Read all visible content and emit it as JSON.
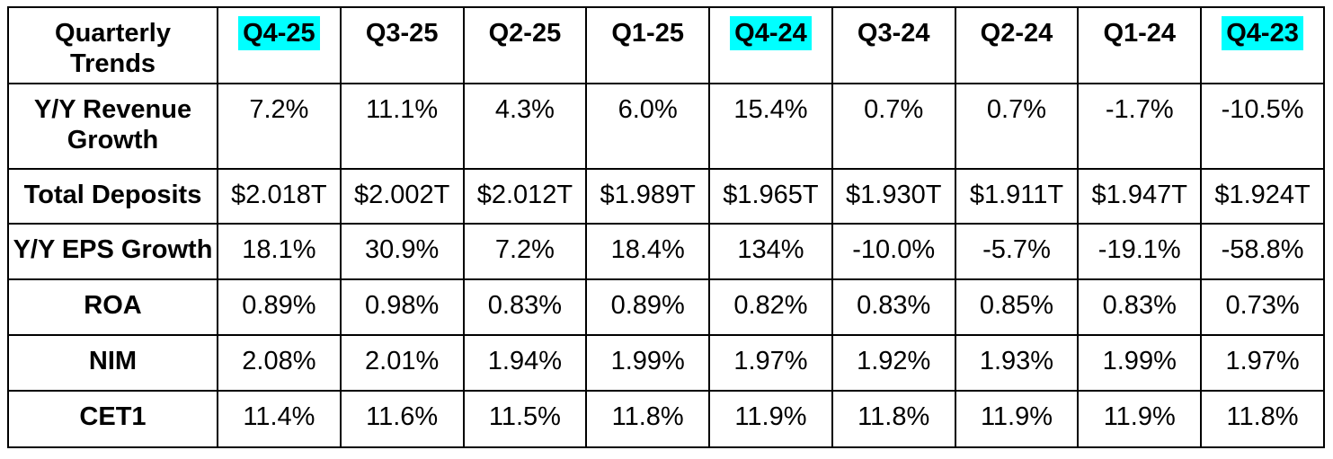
{
  "highlight_color": "#00ffff",
  "border_color": "#000000",
  "table": {
    "corner_label": "Quarterly Trends",
    "columns": [
      {
        "label": "Q4-25",
        "highlighted": true
      },
      {
        "label": "Q3-25",
        "highlighted": false
      },
      {
        "label": "Q2-25",
        "highlighted": false
      },
      {
        "label": "Q1-25",
        "highlighted": false
      },
      {
        "label": "Q4-24",
        "highlighted": true
      },
      {
        "label": "Q3-24",
        "highlighted": false
      },
      {
        "label": "Q2-24",
        "highlighted": false
      },
      {
        "label": "Q1-24",
        "highlighted": false
      },
      {
        "label": "Q4-23",
        "highlighted": true
      }
    ],
    "rows": [
      {
        "label": "Y/Y Revenue Growth",
        "values": [
          "7.2%",
          "11.1%",
          "4.3%",
          "6.0%",
          "15.4%",
          "0.7%",
          "0.7%",
          "-1.7%",
          "-10.5%"
        ]
      },
      {
        "label": "Total Deposits",
        "values": [
          "$2.018T",
          "$2.002T",
          "$2.012T",
          "$1.989T",
          "$1.965T",
          "$1.930T",
          "$1.911T",
          "$1.947T",
          "$1.924T"
        ]
      },
      {
        "label": "Y/Y EPS Growth",
        "values": [
          "18.1%",
          "30.9%",
          "7.2%",
          "18.4%",
          "134%",
          "-10.0%",
          "-5.7%",
          "-19.1%",
          "-58.8%"
        ]
      },
      {
        "label": "ROA",
        "values": [
          "0.89%",
          "0.98%",
          "0.83%",
          "0.89%",
          "0.82%",
          "0.83%",
          "0.85%",
          "0.83%",
          "0.73%"
        ]
      },
      {
        "label": "NIM",
        "values": [
          "2.08%",
          "2.01%",
          "1.94%",
          "1.99%",
          "1.97%",
          "1.92%",
          "1.93%",
          "1.99%",
          "1.97%"
        ]
      },
      {
        "label": "CET1",
        "values": [
          "11.4%",
          "11.6%",
          "11.5%",
          "11.8%",
          "11.9%",
          "11.8%",
          "11.9%",
          "11.9%",
          "11.8%"
        ]
      }
    ]
  },
  "chart_data": {
    "type": "table",
    "title": "Quarterly Trends",
    "categories": [
      "Q4-25",
      "Q3-25",
      "Q2-25",
      "Q1-25",
      "Q4-24",
      "Q3-24",
      "Q2-24",
      "Q1-24",
      "Q4-23"
    ],
    "highlighted_categories": [
      "Q4-25",
      "Q4-24",
      "Q4-23"
    ],
    "series": [
      {
        "name": "Y/Y Revenue Growth",
        "unit": "%",
        "values": [
          7.2,
          11.1,
          4.3,
          6.0,
          15.4,
          0.7,
          0.7,
          -1.7,
          -10.5
        ]
      },
      {
        "name": "Total Deposits",
        "unit": "$T",
        "values": [
          2.018,
          2.002,
          2.012,
          1.989,
          1.965,
          1.93,
          1.911,
          1.947,
          1.924
        ]
      },
      {
        "name": "Y/Y EPS Growth",
        "unit": "%",
        "values": [
          18.1,
          30.9,
          7.2,
          18.4,
          134,
          -10.0,
          -5.7,
          -19.1,
          -58.8
        ]
      },
      {
        "name": "ROA",
        "unit": "%",
        "values": [
          0.89,
          0.98,
          0.83,
          0.89,
          0.82,
          0.83,
          0.85,
          0.83,
          0.73
        ]
      },
      {
        "name": "NIM",
        "unit": "%",
        "values": [
          2.08,
          2.01,
          1.94,
          1.99,
          1.97,
          1.92,
          1.93,
          1.99,
          1.97
        ]
      },
      {
        "name": "CET1",
        "unit": "%",
        "values": [
          11.4,
          11.6,
          11.5,
          11.8,
          11.9,
          11.8,
          11.9,
          11.9,
          11.8
        ]
      }
    ]
  }
}
